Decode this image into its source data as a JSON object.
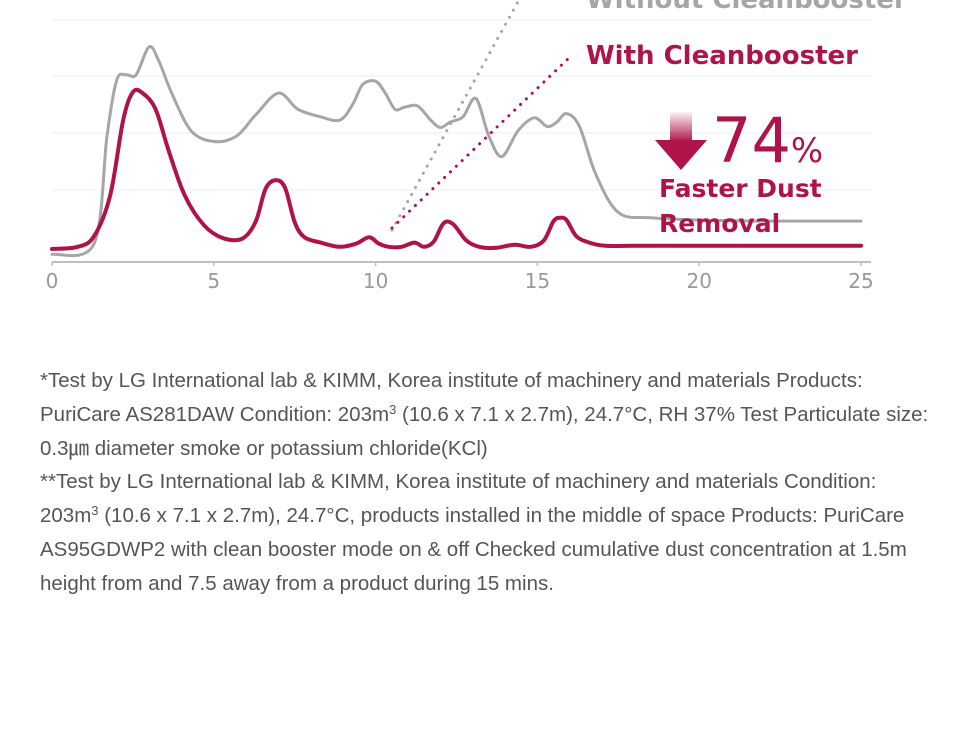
{
  "chart_data": {
    "type": "line",
    "x_ticks": [
      "0",
      "5",
      "10",
      "15",
      "20",
      "25"
    ],
    "xlim": [
      0,
      25
    ],
    "grid": true,
    "series": [
      {
        "name": "Without Cleanbooster",
        "color": "#a6a6a6",
        "x": [
          0,
          1.3,
          1.7,
          2.0,
          2.3,
          2.6,
          3.0,
          3.3,
          3.7,
          4.3,
          5.0,
          5.7,
          6.3,
          7.0,
          7.6,
          8.3,
          8.9,
          9.3,
          9.6,
          10.0,
          10.3,
          10.6,
          10.9,
          11.3,
          11.7,
          12.0,
          12.3,
          12.7,
          13.1,
          13.5,
          13.9,
          14.4,
          14.9,
          15.3,
          15.6,
          15.9,
          16.3,
          16.8,
          17.5,
          18.5,
          20,
          22,
          25
        ],
        "y": [
          -0.5,
          0.5,
          10.5,
          15.7,
          16.2,
          16.2,
          18.8,
          17.5,
          14.5,
          11.0,
          10.0,
          10.5,
          12.5,
          14.5,
          13.0,
          12.3,
          12.0,
          13.5,
          15.3,
          15.6,
          14.5,
          13.0,
          13.2,
          13.3,
          12.0,
          11.3,
          11.8,
          12.3,
          14.0,
          10.5,
          8.6,
          11.0,
          12.2,
          11.4,
          11.8,
          12.6,
          11.4,
          7.0,
          3.4,
          2.9,
          2.7,
          2.6,
          2.6
        ]
      },
      {
        "name": "With Cleanbooster",
        "color": "#b0124a",
        "x": [
          0,
          0.8,
          1.3,
          1.8,
          2.2,
          2.5,
          2.8,
          3.2,
          3.6,
          4.1,
          4.7,
          5.3,
          5.9,
          6.3,
          6.6,
          6.9,
          7.2,
          7.5,
          7.8,
          8.3,
          8.9,
          9.4,
          9.8,
          10.1,
          10.4,
          10.8,
          11.2,
          11.5,
          11.8,
          12.1,
          12.4,
          12.8,
          13.2,
          13.7,
          14.3,
          14.8,
          15.2,
          15.5,
          15.7,
          15.9,
          16.2,
          16.6,
          17.1,
          18,
          20,
          25
        ],
        "y": [
          0,
          0.2,
          1.2,
          5.0,
          12.0,
          14.6,
          14.5,
          13.0,
          9.2,
          5.0,
          2.2,
          1.0,
          1.0,
          2.6,
          5.6,
          6.4,
          5.7,
          2.5,
          1.1,
          0.6,
          0.2,
          0.5,
          1.1,
          0.5,
          0.2,
          0.2,
          0.6,
          0.2,
          0.7,
          2.4,
          2.3,
          0.8,
          0.2,
          0.1,
          0.4,
          0.2,
          0.8,
          2.6,
          2.9,
          2.7,
          1.2,
          0.6,
          0.3,
          0.3,
          0.3,
          0.3
        ]
      }
    ]
  },
  "legend": {
    "without_label": "Without Cleanbooster",
    "with_label": "With Cleanbooster"
  },
  "callout": {
    "percent_number": "74",
    "percent_sign": "%",
    "line1": "Faster Dust",
    "line2": "Removal"
  },
  "footnotes": {
    "p1_part1": "*Test by LG International lab & KIMM, Korea institute of machinery and materials Products: PuriCare AS281DAW Condition: 203m",
    "p1_sup": "3",
    "p1_part2": " (10.6 x 7.1 x 2.7m), 24.7°C, RH 37% Test Particulate size: 0.3㎛ diameter smoke or potassium chloride(KCl)",
    "p2_part1": "**Test by LG International lab & KIMM, Korea institute of machinery and materials Condition: 203m",
    "p2_sup": "3",
    "p2_part2": " (10.6 x 7.1 x 2.7m), 24.7°C, products installed in the middle of space Products: PuriCare AS95GDWP2 with clean booster mode on & off Checked cumulative dust concentration at 1.5m height from and 7.5 away from a product during 15 mins."
  },
  "colors": {
    "accent": "#b0124a",
    "gray_line": "#a6a6a6",
    "axis": "#bfbfbf",
    "grid": "#ececec",
    "text": "#555555"
  }
}
